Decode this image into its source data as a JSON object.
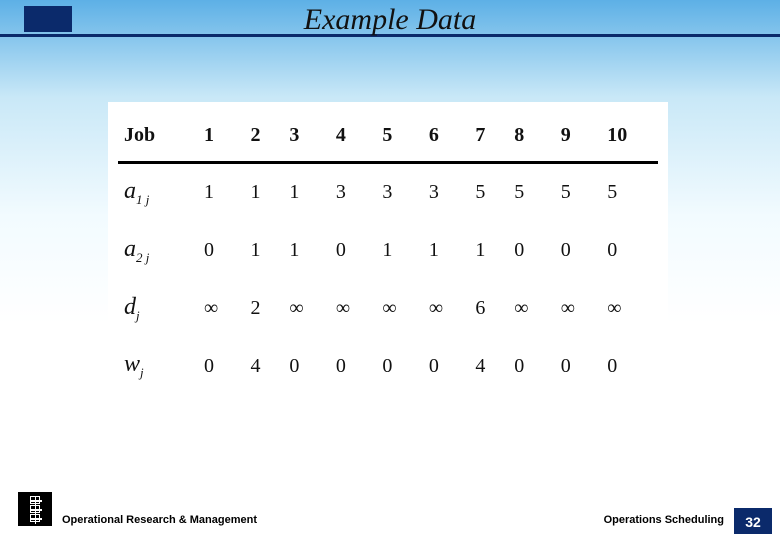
{
  "slide": {
    "title": "Example Data",
    "footer_left": "Operational Research & Management",
    "footer_right": "Operations Scheduling",
    "page_number": "32",
    "accent_color": "#0b2a6b",
    "background_gradient_top": "#5db0e6",
    "background_gradient_bottom": "#ffffff"
  },
  "table": {
    "type": "table",
    "header_label": "Job",
    "columns": [
      "1",
      "2",
      "3",
      "4",
      "5",
      "6",
      "7",
      "8",
      "9",
      "10"
    ],
    "rows": [
      {
        "label_base": "a",
        "label_sub": "1 j",
        "cells": [
          "1",
          "1",
          "1",
          "3",
          "3",
          "3",
          "5",
          "5",
          "5",
          "5"
        ]
      },
      {
        "label_base": "a",
        "label_sub": "2 j",
        "cells": [
          "0",
          "1",
          "1",
          "0",
          "1",
          "1",
          "1",
          "0",
          "0",
          "0"
        ]
      },
      {
        "label_base": "d",
        "label_sub": "j",
        "cells": [
          "∞",
          "2",
          "∞",
          "∞",
          "∞",
          "∞",
          "6",
          "∞",
          "∞",
          "∞"
        ]
      },
      {
        "label_base": "w",
        "label_sub": "j",
        "cells": [
          "0",
          "4",
          "0",
          "0",
          "0",
          "0",
          "4",
          "0",
          "0",
          "0"
        ]
      }
    ],
    "header_fontsize_pt": 16,
    "cell_fontsize_pt": 15,
    "label_fontsize_pt": 18,
    "border_color": "#000000",
    "background_color": "#ffffff"
  }
}
